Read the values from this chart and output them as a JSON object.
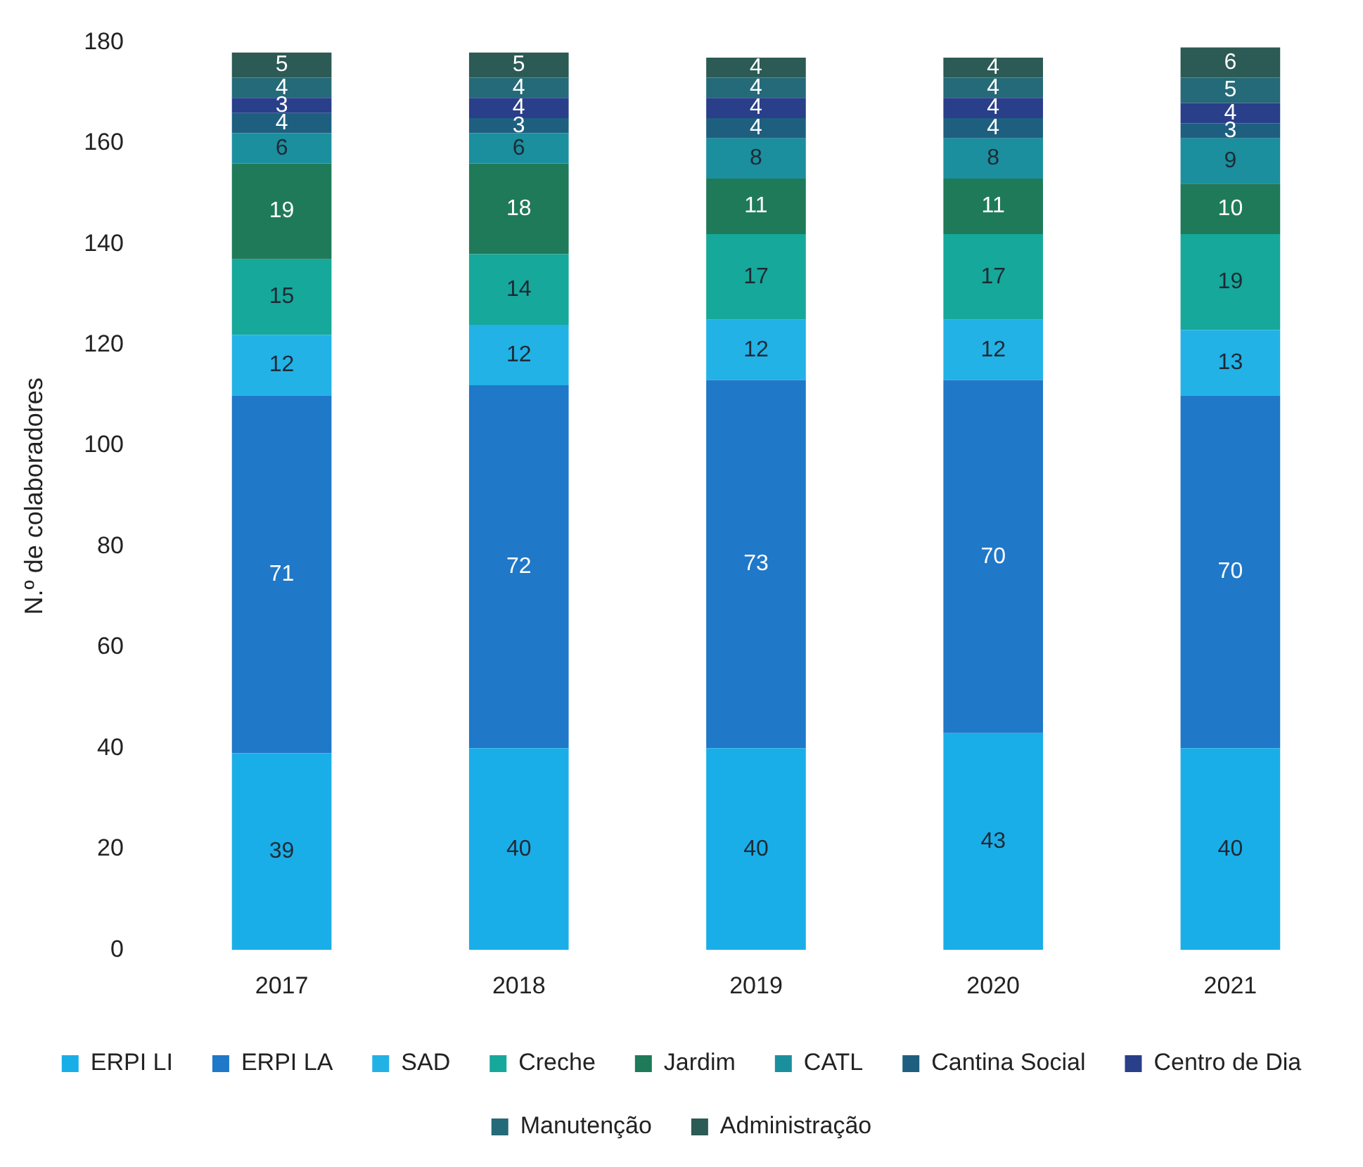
{
  "chart_data": {
    "type": "bar",
    "stacked": true,
    "ylabel": "N.º de colaboradores",
    "categories": [
      "2017",
      "2018",
      "2019",
      "2020",
      "2021"
    ],
    "ylim": [
      0,
      180
    ],
    "yticks": [
      0,
      20,
      40,
      60,
      80,
      100,
      120,
      140,
      160,
      180
    ],
    "grid": false,
    "legend": "bottom",
    "data_labels": true,
    "series": [
      {
        "name": "ERPI LI",
        "color": "#1aaee8",
        "values": [
          39,
          40,
          40,
          43,
          40
        ]
      },
      {
        "name": "ERPI LA",
        "color": "#1f78c8",
        "values": [
          71,
          72,
          73,
          70,
          70
        ]
      },
      {
        "name": "SAD",
        "color": "#22b2e6",
        "values": [
          12,
          12,
          12,
          12,
          13
        ]
      },
      {
        "name": "Creche",
        "color": "#16a89a",
        "values": [
          15,
          14,
          17,
          17,
          19
        ]
      },
      {
        "name": "Jardim",
        "color": "#1f7a5a",
        "values": [
          19,
          18,
          11,
          11,
          10
        ]
      },
      {
        "name": "CATL",
        "color": "#1b8f9e",
        "values": [
          6,
          6,
          8,
          8,
          9
        ]
      },
      {
        "name": "Cantina Social",
        "color": "#1e5f80",
        "values": [
          4,
          3,
          4,
          4,
          3
        ]
      },
      {
        "name": "Centro de Dia",
        "color": "#2a3f8a",
        "values": [
          3,
          4,
          4,
          4,
          4
        ]
      },
      {
        "name": "Manutenção",
        "color": "#246a78",
        "values": [
          4,
          4,
          4,
          4,
          5
        ]
      },
      {
        "name": "Administração",
        "color": "#2c5a55",
        "values": [
          5,
          5,
          4,
          4,
          6
        ]
      }
    ]
  }
}
